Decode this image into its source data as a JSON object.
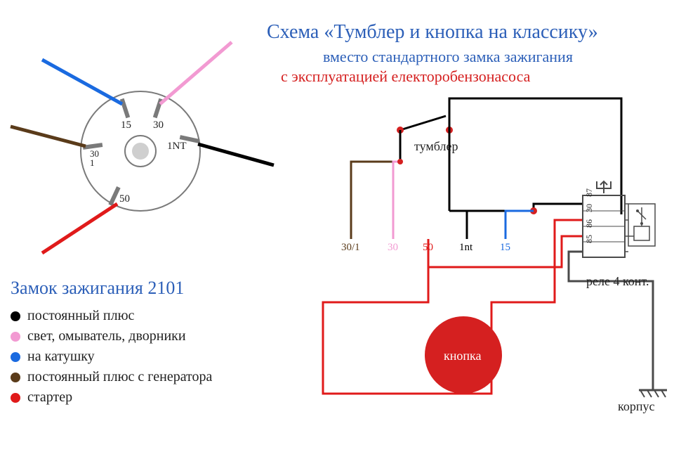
{
  "titles": {
    "main": "Схема «Тумблер и кнопка на классику»",
    "sub": "вместо стандартного замка зажигания",
    "red": "с эксплуатацией електоробензонасоса"
  },
  "ignition": {
    "title": "Замок зажигания 2101",
    "pins": {
      "p15": "15",
      "p30": "30",
      "p30_1": "30\n1",
      "p1nt": "1NT",
      "p50": "50"
    }
  },
  "legend": [
    {
      "color": "#000000",
      "text": "постоянный плюс"
    },
    {
      "color": "#f29ad2",
      "text": "свет, омыватель, дворники"
    },
    {
      "color": "#1a6ae0",
      "text": "на катушку"
    },
    {
      "color": "#5a3b1a",
      "text": "постоянный плюс с генератора"
    },
    {
      "color": "#e01a1a",
      "text": "стартер"
    }
  ],
  "schematic": {
    "tumbler": "тумблер",
    "button": "кнопка",
    "relay": "реле 4 конт.",
    "ground": "корпус",
    "wires": {
      "w30_1": {
        "label": "30/1",
        "color": "#5a3b1a"
      },
      "w30": {
        "label": "30",
        "color": "#f29ad2"
      },
      "w50": {
        "label": "50",
        "color": "#e01a1a"
      },
      "w1nt": {
        "label": "1nt",
        "color": "#000000"
      },
      "w15": {
        "label": "15",
        "color": "#1a6ae0"
      }
    },
    "relay_pins": [
      "87",
      "30",
      "86",
      "85"
    ]
  },
  "colors": {
    "blue_text": "#2c5fb8",
    "red_text": "#d52020",
    "button_fill": "#d52020",
    "lock_stroke": "#7a7a7a",
    "relay_stroke": "#4a4a4a",
    "node": "#d52020"
  }
}
